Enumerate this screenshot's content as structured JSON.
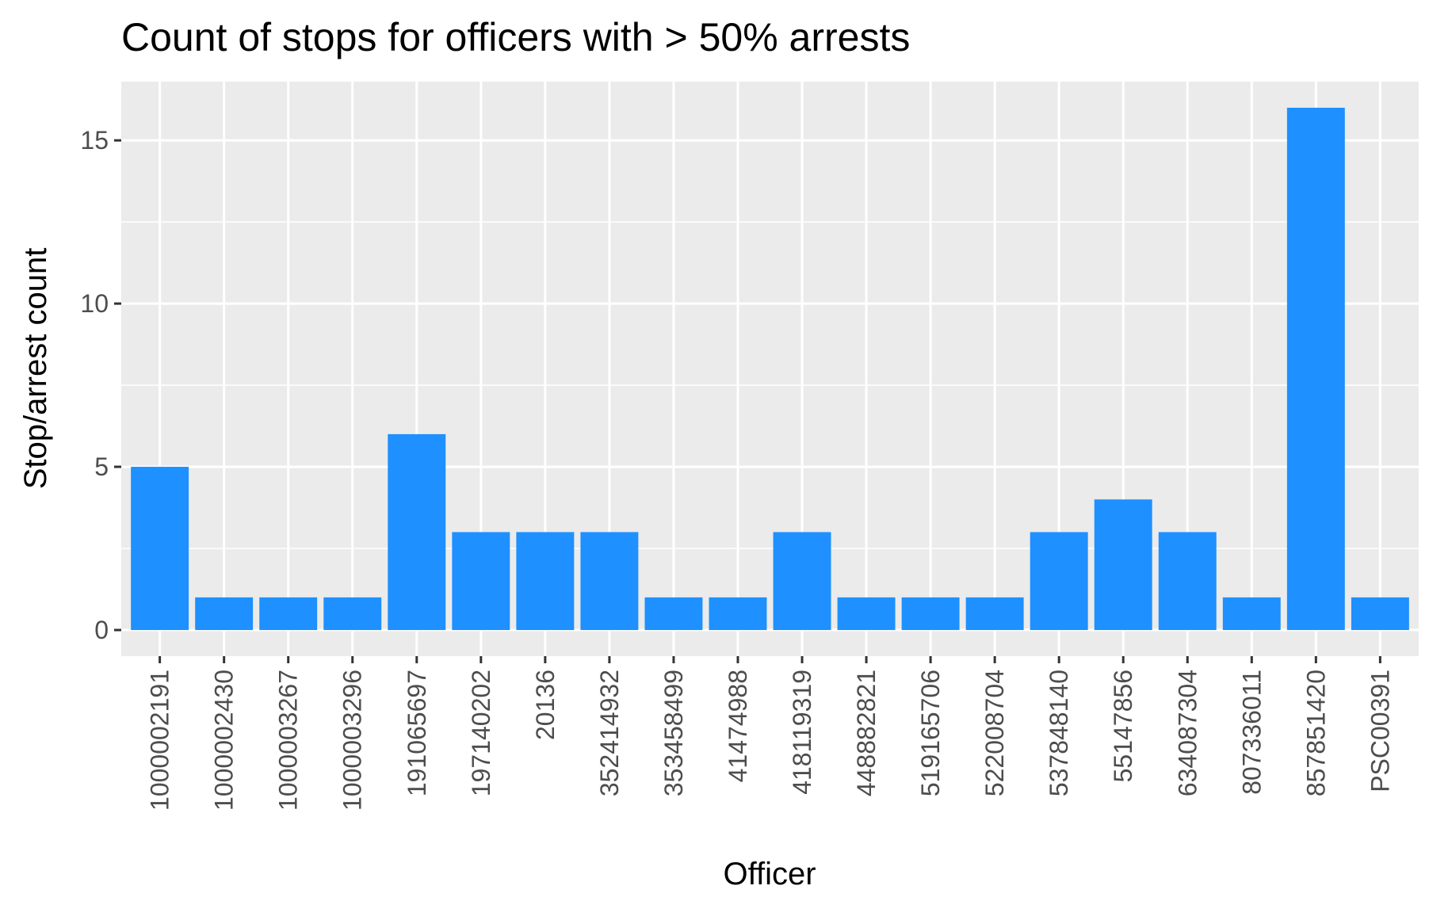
{
  "chart_data": {
    "type": "bar",
    "title": "Count of stops for officers with > 50% arrests",
    "xlabel": "Officer",
    "ylabel": "Stop/arrest count",
    "categories": [
      "1000002191",
      "1000002430",
      "1000003267",
      "1000003296",
      "191065697",
      "197140202",
      "20136",
      "352414932",
      "353458499",
      "41474988",
      "418119319",
      "448882821",
      "519165706",
      "522008704",
      "537848140",
      "55147856",
      "634087304",
      "807336011",
      "857851420",
      "PSC00391"
    ],
    "values": [
      5,
      1,
      1,
      1,
      6,
      3,
      3,
      3,
      1,
      1,
      3,
      1,
      1,
      1,
      3,
      4,
      3,
      1,
      16,
      1
    ],
    "ylim": [
      -0.8,
      16.8
    ],
    "yticks": [
      0,
      5,
      10,
      15
    ],
    "yminor": [
      2.5,
      7.5,
      12.5
    ],
    "bar_color": "#1E90FF",
    "panel_color": "#EBEBEB",
    "grid": true
  }
}
